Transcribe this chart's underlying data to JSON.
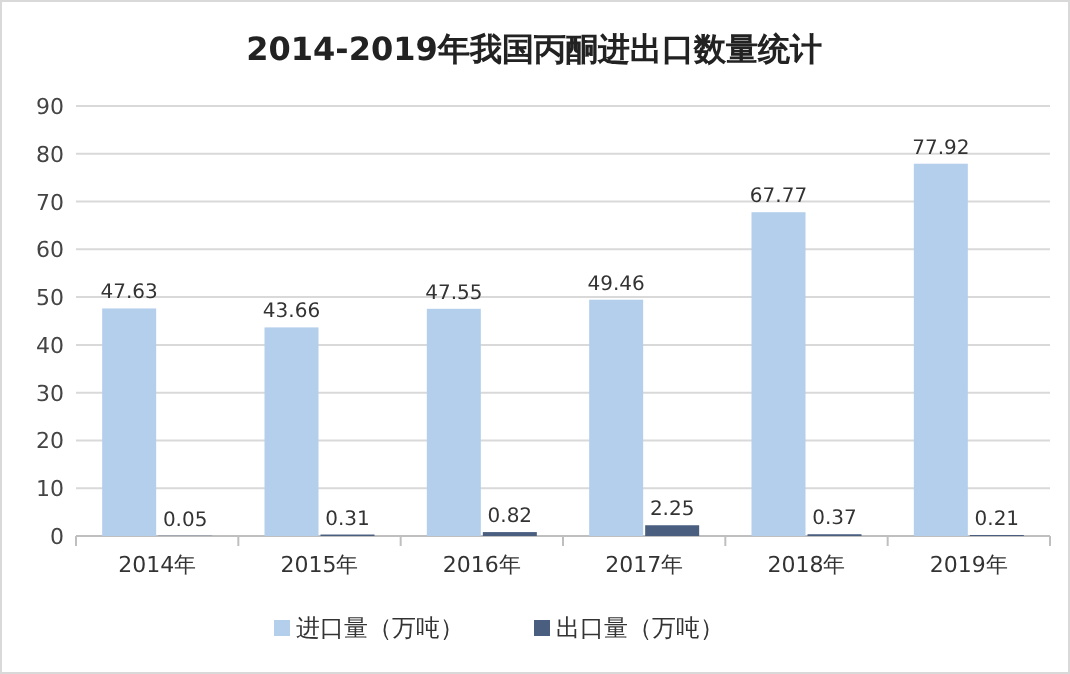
{
  "chart_data": {
    "type": "bar",
    "title": "2014-2019年我国丙酮进出口数量统计",
    "categories": [
      "2014年",
      "2015年",
      "2016年",
      "2017年",
      "2018年",
      "2019年"
    ],
    "series": [
      {
        "name": "进口量（万吨）",
        "color": "#b4cfec",
        "values": [
          47.63,
          43.66,
          47.55,
          49.46,
          67.77,
          77.92
        ]
      },
      {
        "name": "出口量（万吨）",
        "color": "#4a5f80",
        "values": [
          0.05,
          0.31,
          0.82,
          2.25,
          0.37,
          0.21
        ]
      }
    ],
    "ylim": [
      0,
      90
    ],
    "yticks": [
      0,
      10,
      20,
      30,
      40,
      50,
      60,
      70,
      80,
      90
    ],
    "grid": "y",
    "legend": "bottom",
    "data_labels": true
  }
}
